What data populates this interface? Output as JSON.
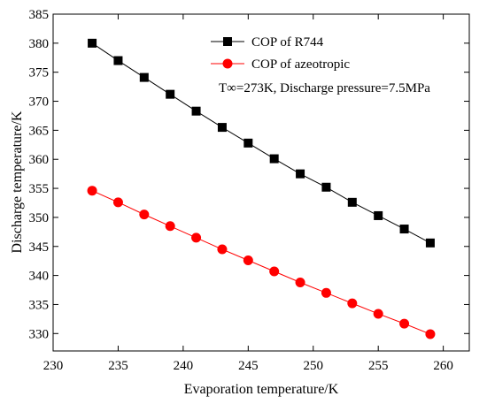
{
  "chart_data": {
    "type": "line",
    "xlabel": "Evaporation temperature/K",
    "ylabel": "Discharge temperature/K",
    "xlim": [
      230,
      262
    ],
    "ylim": [
      327,
      385
    ],
    "xticks": [
      230,
      235,
      240,
      245,
      250,
      255,
      260
    ],
    "yticks": [
      330,
      335,
      340,
      345,
      350,
      355,
      360,
      365,
      370,
      375,
      380,
      385
    ],
    "grid": false,
    "legend": "top-right",
    "annotation": "T∞=273K, Discharge pressure=7.5MPa",
    "series": [
      {
        "name": "COP of R744",
        "marker": "square",
        "color": "#000000",
        "x": [
          233,
          235,
          237,
          239,
          241,
          243,
          245,
          247,
          249,
          251,
          253,
          255,
          257,
          259
        ],
        "y": [
          380.0,
          377.0,
          374.1,
          371.2,
          368.3,
          365.5,
          362.8,
          360.1,
          357.5,
          355.2,
          352.6,
          350.3,
          348.0,
          345.6
        ]
      },
      {
        "name": "COP of azeotropic",
        "marker": "circle",
        "color": "#ff0000",
        "x": [
          233,
          235,
          237,
          239,
          241,
          243,
          245,
          247,
          249,
          251,
          253,
          255,
          257,
          259
        ],
        "y": [
          354.6,
          352.6,
          350.5,
          348.5,
          346.5,
          344.5,
          342.6,
          340.7,
          338.8,
          337.0,
          335.2,
          333.4,
          331.7,
          329.9
        ]
      }
    ]
  }
}
